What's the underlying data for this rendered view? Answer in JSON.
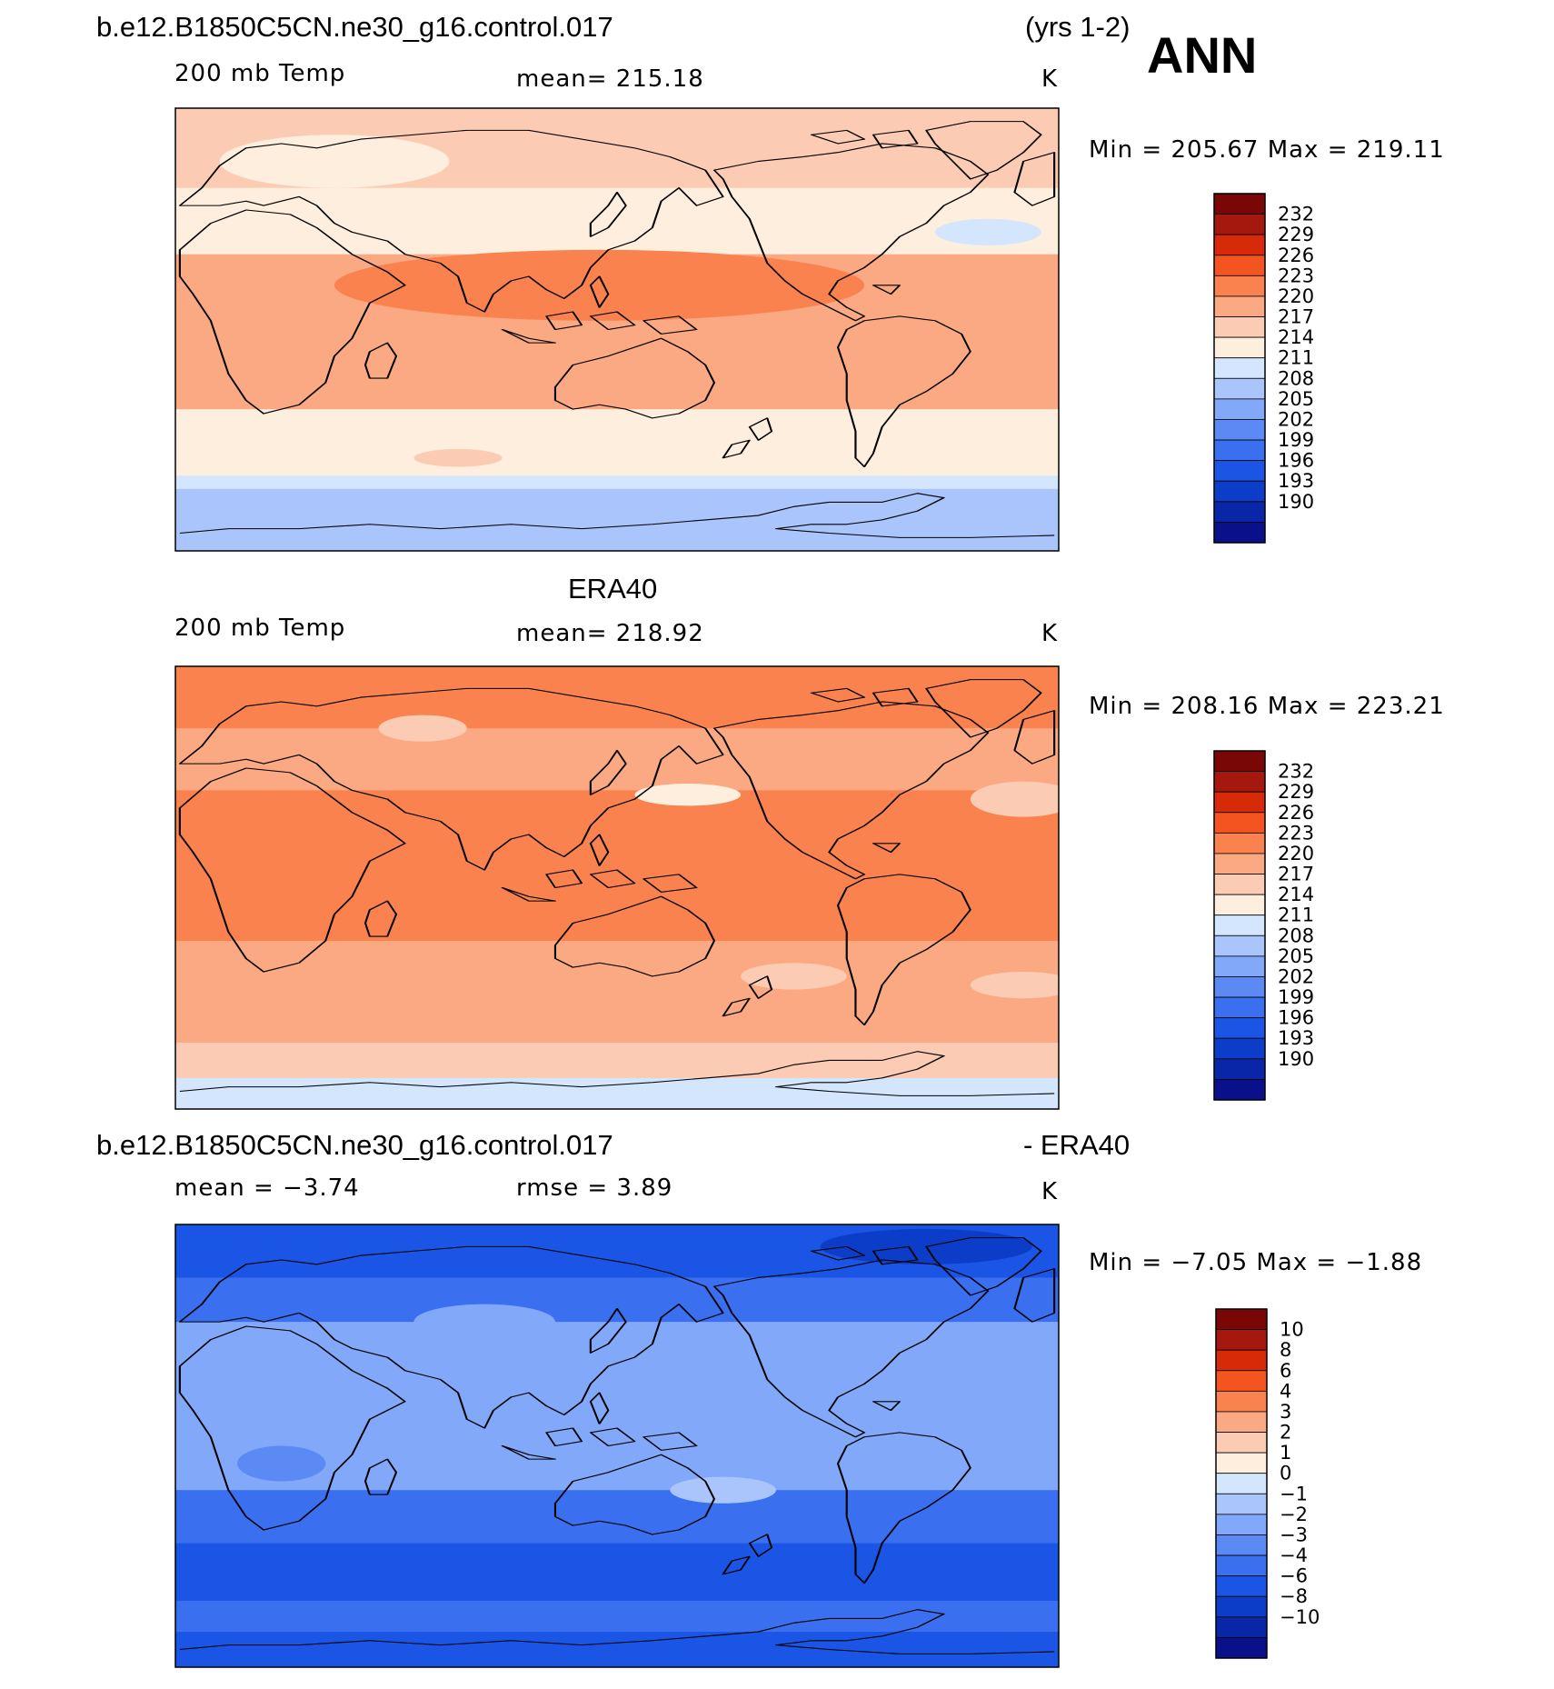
{
  "header": {
    "case_name": "b.e12.B1850C5CN.ne30_g16.control.017",
    "years": "(yrs 1-2)",
    "season": "ANN"
  },
  "panels": [
    {
      "title": "",
      "left_label": "200 mb Temp",
      "center_label": "mean=  215.18",
      "units": "K",
      "minmax": "Min  =  205.67  Max  =  219.11",
      "colorbar": [
        "232",
        "229",
        "226",
        "223",
        "220",
        "217",
        "214",
        "211",
        "208",
        "205",
        "202",
        "199",
        "196",
        "193",
        "190"
      ]
    },
    {
      "title": "ERA40",
      "left_label": "200 mb Temp",
      "center_label": "mean=  218.92",
      "units": "K",
      "minmax": "Min  =  208.16  Max  =  223.21",
      "colorbar": [
        "232",
        "229",
        "226",
        "223",
        "220",
        "217",
        "214",
        "211",
        "208",
        "205",
        "202",
        "199",
        "196",
        "193",
        "190"
      ]
    },
    {
      "title_left": "b.e12.B1850C5CN.ne30_g16.control.017",
      "title_right": "- ERA40",
      "left_label": "mean  =   −3.74",
      "center_label": "rmse  =    3.89",
      "units": "K",
      "minmax": "Min  =   −7.05  Max  =   −1.88",
      "colorbar": [
        "10",
        "8",
        "6",
        "4",
        "3",
        "2",
        "1",
        "0",
        "−1",
        "−2",
        "−3",
        "−4",
        "−6",
        "−8",
        "−10"
      ]
    }
  ],
  "colors": {
    "palette": [
      "#0a0f8a",
      "#0a26a8",
      "#0c3dc9",
      "#1b55e6",
      "#3a6ff0",
      "#5b8af5",
      "#82a8fa",
      "#aac5fc",
      "#d4e6fd",
      "#fdeede",
      "#fccbb3",
      "#fba982",
      "#f9824f",
      "#f45420",
      "#d62a08",
      "#a5180d",
      "#7a0606"
    ],
    "map_line": "#000000"
  }
}
